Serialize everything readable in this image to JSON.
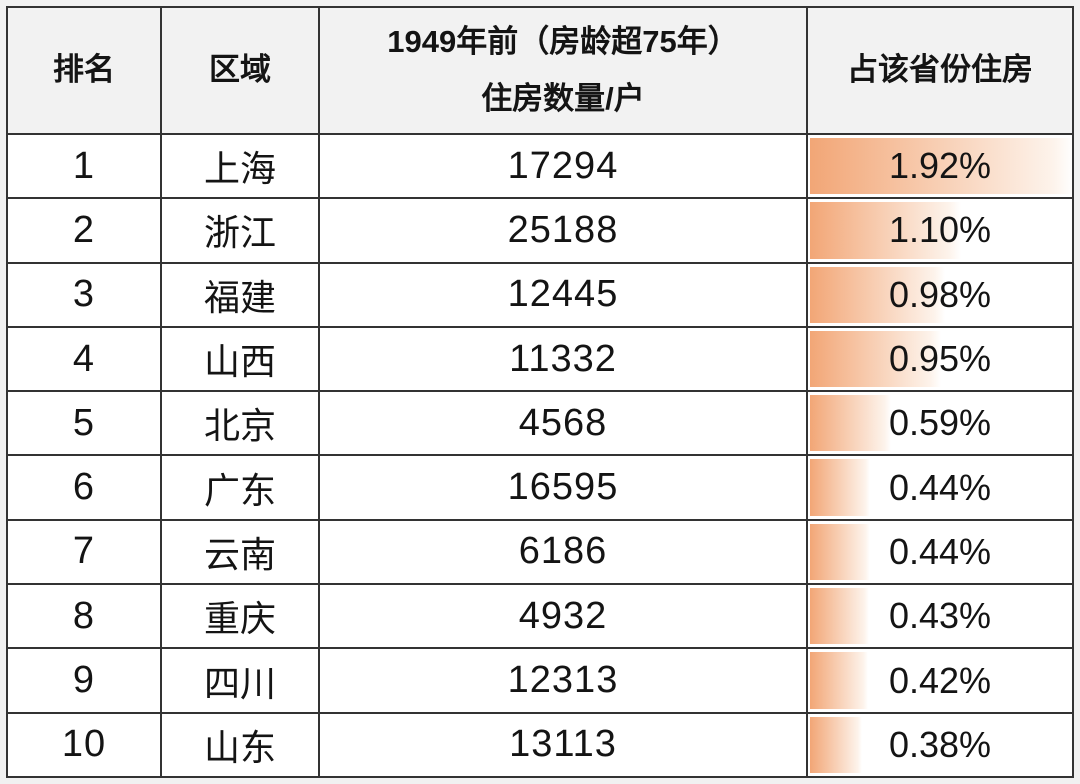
{
  "table": {
    "headers": {
      "rank": "排名",
      "region": "区域",
      "count_line1": "1949年前（房龄超75年）",
      "count_line2": "住房数量/户",
      "share": "占该省份住房"
    },
    "bar_max": 1.92,
    "rows": [
      {
        "rank": "1",
        "region": "上海",
        "count": "17294",
        "share": "1.92%",
        "share_value": 1.92
      },
      {
        "rank": "2",
        "region": "浙江",
        "count": "25188",
        "share": "1.10%",
        "share_value": 1.1
      },
      {
        "rank": "3",
        "region": "福建",
        "count": "12445",
        "share": "0.98%",
        "share_value": 0.98
      },
      {
        "rank": "4",
        "region": "山西",
        "count": "11332",
        "share": "0.95%",
        "share_value": 0.95
      },
      {
        "rank": "5",
        "region": "北京",
        "count": "4568",
        "share": "0.59%",
        "share_value": 0.59
      },
      {
        "rank": "6",
        "region": "广东",
        "count": "16595",
        "share": "0.44%",
        "share_value": 0.44
      },
      {
        "rank": "7",
        "region": "云南",
        "count": "6186",
        "share": "0.44%",
        "share_value": 0.44
      },
      {
        "rank": "8",
        "region": "重庆",
        "count": "4932",
        "share": "0.43%",
        "share_value": 0.43
      },
      {
        "rank": "9",
        "region": "四川",
        "count": "12313",
        "share": "0.42%",
        "share_value": 0.42
      },
      {
        "rank": "10",
        "region": "山东",
        "count": "13113",
        "share": "0.38%",
        "share_value": 0.38
      }
    ]
  },
  "colors": {
    "border": "#333333",
    "header_bg": "#F2F2F2",
    "text": "#141414",
    "bar_start": "#F2A676",
    "bar_end": "#FDF3EB",
    "page_bg": "#F1F1F1"
  },
  "chart_data": {
    "type": "table",
    "columns": [
      "排名",
      "区域",
      "1949年前（房龄超75年）住房数量/户",
      "占该省份住房"
    ],
    "rows": [
      [
        1,
        "上海",
        17294,
        "1.92%"
      ],
      [
        2,
        "浙江",
        25188,
        "1.10%"
      ],
      [
        3,
        "福建",
        12445,
        "0.98%"
      ],
      [
        4,
        "山西",
        11332,
        "0.95%"
      ],
      [
        5,
        "北京",
        4568,
        "0.59%"
      ],
      [
        6,
        "广东",
        16595,
        "0.44%"
      ],
      [
        7,
        "云南",
        6186,
        "0.44%"
      ],
      [
        8,
        "重庆",
        4932,
        "0.43%"
      ],
      [
        9,
        "四川",
        12313,
        "0.42%"
      ],
      [
        10,
        "山东",
        13113,
        "0.38%"
      ]
    ],
    "data_bar_column": "占该省份住房",
    "data_bar_values_percent": [
      1.92,
      1.1,
      0.98,
      0.95,
      0.59,
      0.44,
      0.44,
      0.43,
      0.42,
      0.38
    ],
    "data_bar_scale_max_percent": 1.92,
    "legend_position": "none",
    "grid": true
  }
}
